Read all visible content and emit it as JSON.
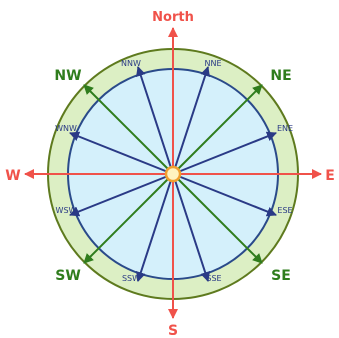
{
  "cardinals": {
    "north": "North",
    "south": "S",
    "east": "E",
    "west": "W"
  },
  "intercardinals": {
    "nw": "NW",
    "ne": "NE",
    "sw": "SW",
    "se": "SE"
  },
  "secondary": {
    "nnw": "NNW",
    "nne": "NNE",
    "wnw": "WNW",
    "ene": "ENE",
    "wsw": "WSW",
    "ese": "ESE",
    "ssw": "SSW",
    "sse": "SSE"
  },
  "colors": {
    "cardinal": "#f0524a",
    "intercardinal": "#2f7d1d",
    "secondary": "#2a3a86",
    "outer_ring_fill": "#dcefc4",
    "outer_ring_stroke": "#5e7a1e",
    "inner_fill": "#d4f0fb",
    "inner_stroke": "#2a4a8a",
    "center_fill": "#fff3c0",
    "center_stroke": "#f0a030"
  }
}
